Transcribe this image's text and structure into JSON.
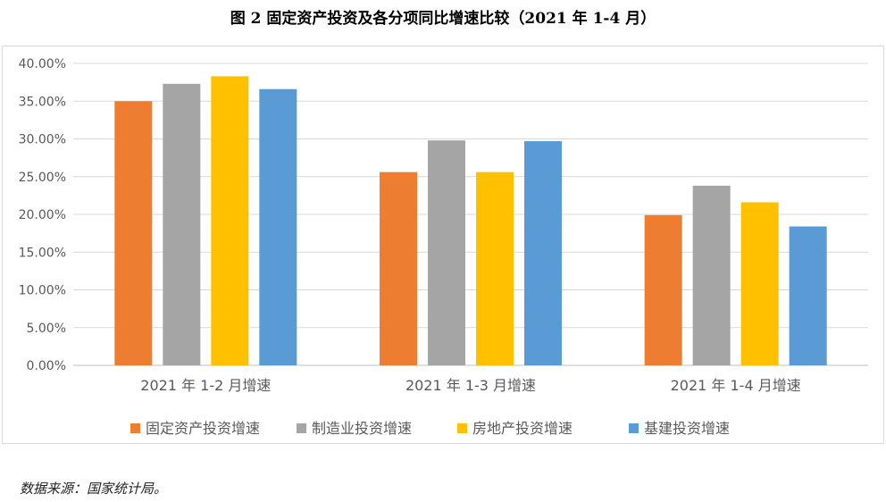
{
  "title": "图 2  固定资产投资及各分项同比增速比较（2021 年 1-4 月）",
  "source": "数据来源：国家统计局。",
  "chart_data": {
    "type": "bar",
    "title": "",
    "xlabel": "",
    "ylabel": "",
    "ylim": [
      0,
      40
    ],
    "grid": true,
    "legend_position": "bottom",
    "yticks": [
      "0.00%",
      "5.00%",
      "10.00%",
      "15.00%",
      "20.00%",
      "25.00%",
      "30.00%",
      "35.00%",
      "40.00%"
    ],
    "categories": [
      "2021 年 1-2 月增速",
      "2021 年 1-3 月增速",
      "2021 年 1-4 月增速"
    ],
    "series": [
      {
        "name": "固定资产投资增速",
        "color": "#ED7D31",
        "values": [
          35.0,
          25.6,
          19.9
        ]
      },
      {
        "name": "制造业投资增速",
        "color": "#A5A5A5",
        "values": [
          37.3,
          29.8,
          23.8
        ]
      },
      {
        "name": "房地产投资增速",
        "color": "#FFC000",
        "values": [
          38.3,
          25.6,
          21.6
        ]
      },
      {
        "name": "基建投资增速",
        "color": "#5B9BD5",
        "values": [
          36.6,
          29.7,
          18.4
        ]
      }
    ]
  }
}
